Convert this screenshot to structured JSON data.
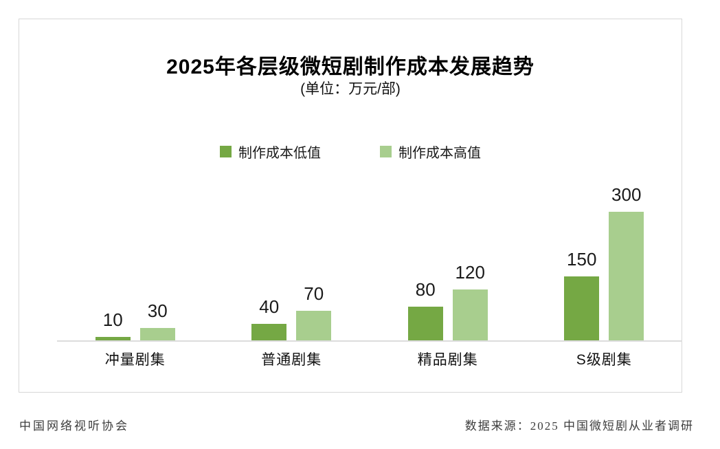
{
  "title": "2025年各层级微短剧制作成本发展趋势",
  "subtitle": "(单位：万元/部)",
  "legend": {
    "low_label": "制作成本低值",
    "high_label": "制作成本高值"
  },
  "footer": {
    "left": "中国网络视听协会",
    "right": "数据来源：2025 中国微短剧从业者调研"
  },
  "colors": {
    "low": "#75a844",
    "high": "#a8ce8e",
    "axis": "#dcdcdc",
    "panel_border": "#d7d7d7"
  },
  "chart_data": {
    "type": "bar",
    "title": "2025年各层级微短剧制作成本发展趋势",
    "subtitle": "(单位：万元/部)",
    "unit": "万元/部",
    "categories": [
      "冲量剧集",
      "普通剧集",
      "精品剧集",
      "S级剧集"
    ],
    "series": [
      {
        "name": "制作成本低值",
        "color": "#75a844",
        "values": [
          10,
          40,
          80,
          150
        ]
      },
      {
        "name": "制作成本高值",
        "color": "#a8ce8e",
        "values": [
          30,
          70,
          120,
          300
        ]
      }
    ],
    "ylim": [
      0,
      300
    ],
    "grid": false,
    "legend_position": "top",
    "data_labels": true,
    "xlabel": "",
    "ylabel": ""
  }
}
